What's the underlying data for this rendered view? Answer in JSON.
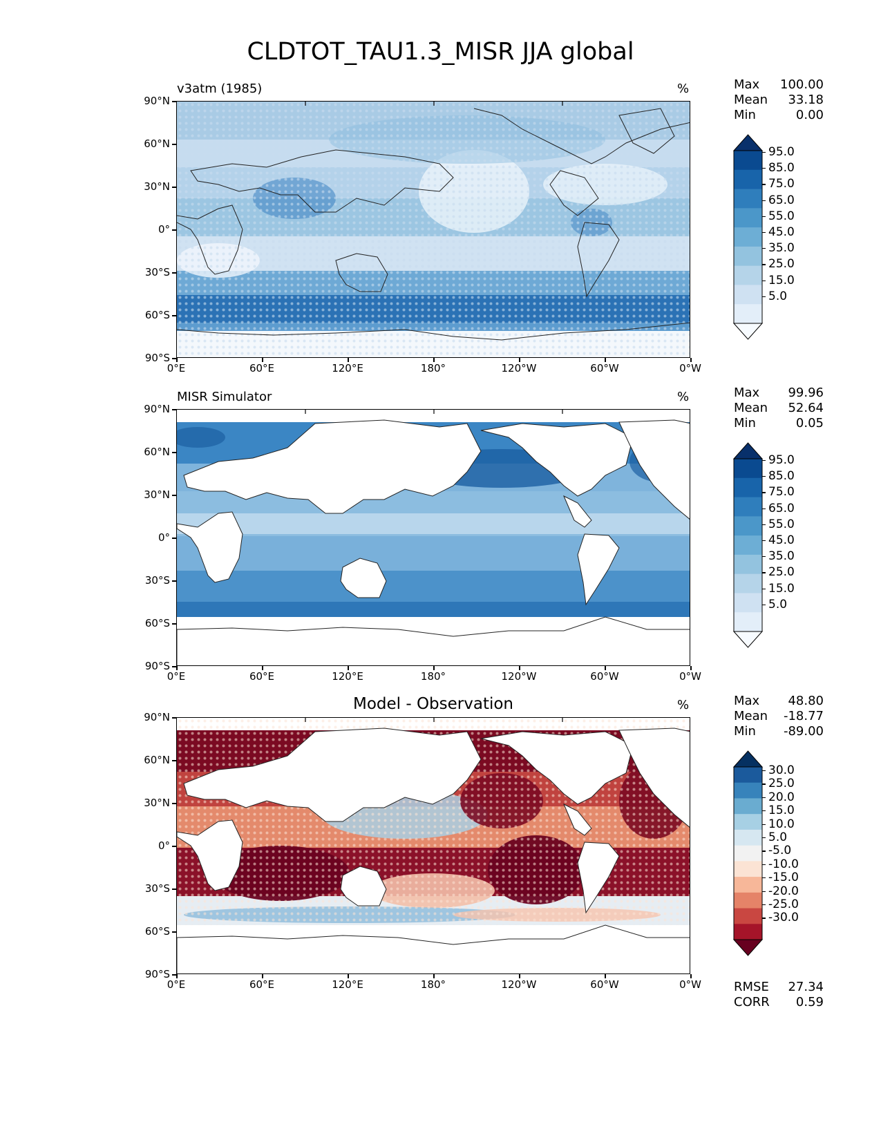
{
  "title": "CLDTOT_TAU1.3_MISR JJA global",
  "axes": {
    "lat_ticks": [
      "90°N",
      "60°N",
      "30°N",
      "0°",
      "30°S",
      "60°S",
      "90°S"
    ],
    "lon_ticks": [
      "0°E",
      "60°E",
      "120°E",
      "180°",
      "120°W",
      "60°W",
      "0°W"
    ]
  },
  "panels": [
    {
      "title": "v3atm (1985)",
      "units": "%",
      "stats": [
        {
          "k": "Max",
          "v": "100.00"
        },
        {
          "k": "Mean",
          "v": "33.18"
        },
        {
          "k": "Min",
          "v": "0.00"
        }
      ],
      "colorbar_labels": [
        "95.0",
        "85.0",
        "75.0",
        "65.0",
        "55.0",
        "45.0",
        "35.0",
        "25.0",
        "15.0",
        "5.0"
      ]
    },
    {
      "title": "MISR Simulator",
      "units": "%",
      "stats": [
        {
          "k": "Max",
          "v": "99.96"
        },
        {
          "k": "Mean",
          "v": "52.64"
        },
        {
          "k": "Min",
          "v": "0.05"
        }
      ],
      "colorbar_labels": [
        "95.0",
        "85.0",
        "75.0",
        "65.0",
        "55.0",
        "45.0",
        "35.0",
        "25.0",
        "15.0",
        "5.0"
      ]
    },
    {
      "title": "Model - Observation",
      "units": "%",
      "stats": [
        {
          "k": "Max",
          "v": "48.80"
        },
        {
          "k": "Mean",
          "v": "-18.77"
        },
        {
          "k": "Min",
          "v": "-89.00"
        }
      ],
      "colorbar_labels": [
        "30.0",
        "25.0",
        "20.0",
        "15.0",
        "10.0",
        "5.0",
        "-5.0",
        "-10.0",
        "-15.0",
        "-20.0",
        "-25.0",
        "-30.0"
      ],
      "extra_stats": [
        {
          "k": "RMSE",
          "v": "27.34"
        },
        {
          "k": "CORR",
          "v": "0.59"
        }
      ]
    }
  ],
  "colors": {
    "blues": [
      "#f7fbff",
      "#e3eef9",
      "#cfe1f2",
      "#b5d4e9",
      "#93c3df",
      "#6daed5",
      "#4b97c9",
      "#2f7ebc",
      "#1864aa",
      "#0a4a90",
      "#08306b"
    ],
    "diverging": [
      "#67001f",
      "#a51429",
      "#c94741",
      "#e58368",
      "#f7b799",
      "#fbe3d4",
      "#f2f2f2",
      "#d6e7f1",
      "#a7d0e4",
      "#6aacd0",
      "#3783bb",
      "#1b5a9c",
      "#053061"
    ]
  }
}
